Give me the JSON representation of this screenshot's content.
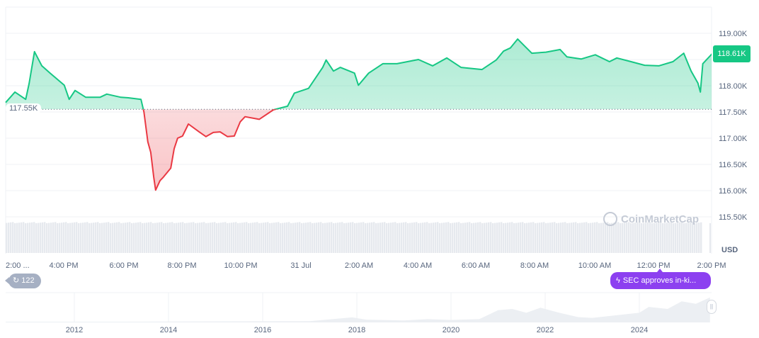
{
  "chart_data": {
    "type": "area",
    "currency_label": "USD",
    "current_price_label": "118.61K",
    "baseline": 117.55,
    "baseline_label": "117.55K",
    "ylim": [
      115.2,
      119.5
    ],
    "y_ticks": [
      {
        "value": 119.0,
        "label": "119.00K"
      },
      {
        "value": 118.0,
        "label": "118.00K"
      },
      {
        "value": 117.5,
        "label": "117.50K"
      },
      {
        "value": 117.0,
        "label": "117.00K"
      },
      {
        "value": 116.5,
        "label": "116.50K"
      },
      {
        "value": 116.0,
        "label": "116.00K"
      },
      {
        "value": 115.5,
        "label": "115.50K"
      }
    ],
    "x_ticks": [
      "2:00 ...",
      "4:00 PM",
      "6:00 PM",
      "8:00 PM",
      "10:00 PM",
      "31 Jul",
      "2:00 AM",
      "4:00 AM",
      "6:00 AM",
      "8:00 AM",
      "10:00 AM",
      "12:00 PM",
      "2:00 PM"
    ],
    "grid": true,
    "colors": {
      "up": "#16c784",
      "down": "#ea3943",
      "volume": "#e6e9ee",
      "grid": "#eff2f5"
    },
    "series": [
      {
        "time": [
          "14:00",
          "14:19",
          "14:41",
          "14:48",
          "14:59",
          "15:14",
          "15:31",
          "16:00",
          "16:10",
          "16:22",
          "16:44",
          "17:13",
          "17:27",
          "17:56",
          "18:11",
          "18:37",
          "18:43",
          "18:51",
          "18:57",
          "19:03",
          "19:07",
          "19:16",
          "19:23",
          "19:38",
          "19:45",
          "19:52",
          "20:02",
          "20:14",
          "20:36",
          "20:50",
          "21:05",
          "21:19",
          "21:34",
          "21:48",
          "22:00",
          "22:10",
          "22:39",
          "23:08",
          "23:37",
          "23:51",
          "00:20",
          "00:49",
          "00:56",
          "01:11",
          "01:25",
          "01:54",
          "02:02",
          "02:23",
          "02:52",
          "03:21",
          "04:05",
          "04:34",
          "05:03",
          "05:32",
          "06:15",
          "06:44",
          "06:59",
          "07:13",
          "07:28",
          "07:42",
          "07:57",
          "08:26",
          "08:55",
          "09:09",
          "09:38",
          "10:07",
          "10:36",
          "10:51",
          "11:20",
          "11:48",
          "12:17",
          "12:46",
          "13:08",
          "13:23",
          "13:37",
          "13:42",
          "13:47",
          "14:06"
        ],
        "price_k": [
          117.68,
          117.88,
          117.74,
          118.04,
          118.65,
          118.38,
          118.24,
          118.01,
          117.74,
          117.91,
          117.78,
          117.78,
          117.84,
          117.78,
          117.77,
          117.74,
          117.5,
          116.93,
          116.73,
          116.26,
          116.01,
          116.19,
          116.26,
          116.43,
          116.8,
          117.0,
          117.04,
          117.27,
          117.12,
          117.03,
          117.11,
          117.12,
          117.03,
          117.04,
          117.31,
          117.41,
          117.36,
          117.54,
          117.61,
          117.86,
          117.95,
          118.35,
          118.49,
          118.28,
          118.35,
          118.24,
          118.01,
          118.24,
          118.42,
          118.42,
          118.5,
          118.38,
          118.53,
          118.35,
          118.31,
          118.49,
          118.66,
          118.72,
          118.89,
          118.76,
          118.62,
          118.64,
          118.69,
          118.55,
          118.51,
          118.59,
          118.46,
          118.53,
          118.46,
          118.39,
          118.38,
          118.46,
          118.62,
          118.28,
          118.05,
          117.88,
          118.42,
          118.61
        ]
      }
    ],
    "navigator": {
      "year_ticks": [
        "2012",
        "2014",
        "2016",
        "2018",
        "2020",
        "2022",
        "2024"
      ],
      "x_years": [
        2010.5,
        2013,
        2017.0,
        2017.9,
        2018.2,
        2019.0,
        2019.5,
        2020.0,
        2020.6,
        2021.0,
        2021.3,
        2021.6,
        2021.9,
        2022.3,
        2022.7,
        2023.0,
        2023.5,
        2024.0,
        2024.2,
        2024.6,
        2024.9,
        2025.2,
        2025.5
      ],
      "relative_level": [
        0,
        0,
        0.02,
        0.17,
        0.08,
        0.05,
        0.1,
        0.07,
        0.1,
        0.45,
        0.5,
        0.35,
        0.55,
        0.35,
        0.18,
        0.15,
        0.25,
        0.35,
        0.58,
        0.5,
        0.8,
        0.7,
        0.95
      ]
    }
  },
  "ui": {
    "history_count": "122",
    "news_label": "SEC approves in-ki...",
    "watermark": "CoinMarketCap"
  }
}
